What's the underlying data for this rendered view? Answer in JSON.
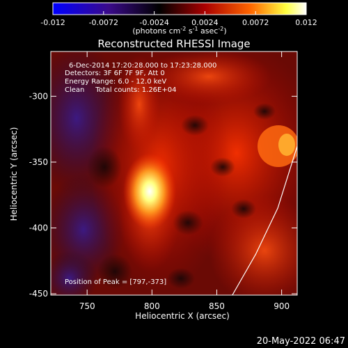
{
  "colorbar": {
    "ticks": [
      "-0.012",
      "-0.0072",
      "-0.0024",
      "0.0024",
      "0.0072",
      "0.012"
    ],
    "units_main": "(photons cm",
    "units_exp1": "-2",
    "units_mid": " s",
    "units_exp2": "-1",
    "units_tail": " asec",
    "units_exp3": "-2",
    "units_close": ")",
    "colors": [
      "#0000ff",
      "#3a0a8a",
      "#000000",
      "#aa0000",
      "#ff6600",
      "#ffff40",
      "#ffffff"
    ]
  },
  "chart_data": {
    "type": "heatmap",
    "title": "Reconstructed RHESSI Image",
    "xlabel": "Heliocentric X (arcsec)",
    "ylabel": "Heliocentric Y (arcsec)",
    "xlim": [
      722,
      912
    ],
    "ylim": [
      -451,
      -266
    ],
    "xticks": [
      750,
      800,
      850,
      900
    ],
    "yticks": [
      -300,
      -350,
      -400,
      -450
    ],
    "annotations": {
      "time": "6-Dec-2014 17:20:28.000 to 17:23:28.000",
      "detectors": "Detectors: 3F 6F 7F 9F, Att 0",
      "energy": "Energy Range: 6.0 - 12.0 keV",
      "clean": "Clean     Total counts: 1.26E+04",
      "peak": "Position of Peak = [797,-373]"
    },
    "peak": {
      "x": 797,
      "y": -373
    },
    "limb_curve": [
      [
        862,
        -451
      ],
      [
        880,
        -420
      ],
      [
        897,
        -385
      ],
      [
        912,
        -338
      ]
    ]
  },
  "footer": {
    "date": "20-May-2022 06:47"
  }
}
